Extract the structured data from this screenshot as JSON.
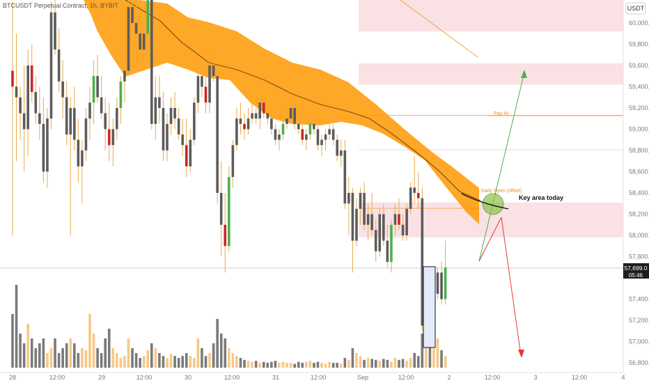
{
  "chart_data": {
    "type": "candlestick",
    "title": "BTCUSDT Perpetual Contract, 1h, BYBIT",
    "currency_label": "USDT",
    "price_axis": {
      "range": [
        56800,
        60300
      ],
      "ticks": [
        "60,000.0",
        "59,800.0",
        "59,600.0",
        "59,400.0",
        "59,200.0",
        "59,000.0",
        "58,800.0",
        "58,600.0",
        "58,400.0",
        "58,200.0",
        "58,000.0",
        "57,800.0",
        "57,400.0",
        "57,200.0",
        "57,000.0",
        "56,800.0"
      ]
    },
    "time_axis": {
      "ticks": [
        "28",
        "12:00",
        "29",
        "12:00",
        "30",
        "12:00",
        "31",
        "12:00",
        "Sep",
        "12:00",
        "2",
        "12:00",
        "3",
        "12:00",
        "4"
      ]
    },
    "current_price": {
      "value": 57699,
      "label": "57,699.0",
      "countdown": "05:46"
    },
    "candles": [
      {
        "o": 59550,
        "h": 60200,
        "l": 58000,
        "c": 59400
      },
      {
        "o": 59400,
        "h": 59900,
        "l": 58700,
        "c": 59300
      },
      {
        "o": 59300,
        "h": 59400,
        "l": 58900,
        "c": 59150
      },
      {
        "o": 59150,
        "h": 59600,
        "l": 58600,
        "c": 59000
      },
      {
        "o": 59000,
        "h": 59750,
        "l": 58750,
        "c": 59600
      },
      {
        "o": 59600,
        "h": 59800,
        "l": 59250,
        "c": 59350
      },
      {
        "o": 59350,
        "h": 59500,
        "l": 59050,
        "c": 59150
      },
      {
        "o": 59150,
        "h": 59400,
        "l": 58900,
        "c": 59050
      },
      {
        "o": 59050,
        "h": 59300,
        "l": 58500,
        "c": 58600
      },
      {
        "o": 58600,
        "h": 59200,
        "l": 58450,
        "c": 59100
      },
      {
        "o": 59100,
        "h": 60200,
        "l": 59000,
        "c": 60100
      },
      {
        "o": 60100,
        "h": 60250,
        "l": 59700,
        "c": 59750
      },
      {
        "o": 59750,
        "h": 59950,
        "l": 59350,
        "c": 59450
      },
      {
        "o": 59450,
        "h": 59650,
        "l": 59100,
        "c": 59300
      },
      {
        "o": 59300,
        "h": 59450,
        "l": 58850,
        "c": 58950
      },
      {
        "o": 58950,
        "h": 59300,
        "l": 58000,
        "c": 59200
      },
      {
        "o": 59200,
        "h": 59400,
        "l": 58800,
        "c": 58900
      },
      {
        "o": 58900,
        "h": 59100,
        "l": 58500,
        "c": 58650
      },
      {
        "o": 58650,
        "h": 58900,
        "l": 58300,
        "c": 58800
      },
      {
        "o": 58800,
        "h": 59200,
        "l": 58700,
        "c": 59100
      },
      {
        "o": 59100,
        "h": 59400,
        "l": 58900,
        "c": 59250
      },
      {
        "o": 59250,
        "h": 59650,
        "l": 59050,
        "c": 59500
      },
      {
        "o": 59500,
        "h": 59700,
        "l": 59250,
        "c": 59300
      },
      {
        "o": 59300,
        "h": 59500,
        "l": 59100,
        "c": 59150
      },
      {
        "o": 59150,
        "h": 59300,
        "l": 58800,
        "c": 59000
      },
      {
        "o": 59000,
        "h": 59250,
        "l": 58700,
        "c": 58850
      },
      {
        "o": 58850,
        "h": 59100,
        "l": 58650,
        "c": 59000
      },
      {
        "o": 59000,
        "h": 59300,
        "l": 58900,
        "c": 59200
      },
      {
        "o": 59200,
        "h": 59500,
        "l": 59050,
        "c": 59450
      },
      {
        "o": 59450,
        "h": 59650,
        "l": 59250,
        "c": 59550
      },
      {
        "o": 59550,
        "h": 60200,
        "l": 59500,
        "c": 60150
      },
      {
        "o": 60150,
        "h": 60300,
        "l": 59900,
        "c": 60000
      },
      {
        "o": 60000,
        "h": 60250,
        "l": 59800,
        "c": 59900
      },
      {
        "o": 59900,
        "h": 60100,
        "l": 59700,
        "c": 59750
      },
      {
        "o": 59750,
        "h": 60000,
        "l": 59600,
        "c": 59900
      },
      {
        "o": 59900,
        "h": 60300,
        "l": 59850,
        "c": 60250
      },
      {
        "o": 60250,
        "h": 60300,
        "l": 59000,
        "c": 59050
      },
      {
        "o": 59050,
        "h": 59500,
        "l": 58900,
        "c": 59300
      },
      {
        "o": 59300,
        "h": 59500,
        "l": 59050,
        "c": 59200
      },
      {
        "o": 59200,
        "h": 59350,
        "l": 58700,
        "c": 58800
      },
      {
        "o": 58800,
        "h": 59150,
        "l": 58700,
        "c": 59050
      },
      {
        "o": 59050,
        "h": 59300,
        "l": 58950,
        "c": 59200
      },
      {
        "o": 59200,
        "h": 59350,
        "l": 59000,
        "c": 59100
      },
      {
        "o": 59100,
        "h": 59200,
        "l": 58900,
        "c": 58950
      },
      {
        "o": 58950,
        "h": 59100,
        "l": 58750,
        "c": 58850
      },
      {
        "o": 58850,
        "h": 59100,
        "l": 58550,
        "c": 58650
      },
      {
        "o": 58650,
        "h": 59000,
        "l": 58600,
        "c": 58900
      },
      {
        "o": 58900,
        "h": 59300,
        "l": 58850,
        "c": 59250
      },
      {
        "o": 59250,
        "h": 59550,
        "l": 59150,
        "c": 59500
      },
      {
        "o": 59500,
        "h": 59600,
        "l": 59300,
        "c": 59400
      },
      {
        "o": 59400,
        "h": 59500,
        "l": 59150,
        "c": 59250
      },
      {
        "o": 59250,
        "h": 59650,
        "l": 59150,
        "c": 59600
      },
      {
        "o": 59600,
        "h": 59700,
        "l": 59450,
        "c": 59500
      },
      {
        "o": 59500,
        "h": 59600,
        "l": 58300,
        "c": 58400
      },
      {
        "o": 58400,
        "h": 58700,
        "l": 57800,
        "c": 58100
      },
      {
        "o": 58100,
        "h": 58400,
        "l": 57650,
        "c": 57900
      },
      {
        "o": 57900,
        "h": 58650,
        "l": 57850,
        "c": 58550
      },
      {
        "o": 58550,
        "h": 58900,
        "l": 58450,
        "c": 58850
      },
      {
        "o": 58850,
        "h": 59200,
        "l": 58800,
        "c": 59100
      },
      {
        "o": 59100,
        "h": 59250,
        "l": 58950,
        "c": 59050
      },
      {
        "o": 59050,
        "h": 59150,
        "l": 58900,
        "c": 59000
      },
      {
        "o": 59000,
        "h": 59200,
        "l": 58950,
        "c": 59100
      },
      {
        "o": 59100,
        "h": 59250,
        "l": 59050,
        "c": 59150
      },
      {
        "o": 59150,
        "h": 59200,
        "l": 59050,
        "c": 59100
      },
      {
        "o": 59100,
        "h": 59300,
        "l": 59000,
        "c": 59250
      },
      {
        "o": 59250,
        "h": 59300,
        "l": 59100,
        "c": 59150
      },
      {
        "o": 59150,
        "h": 59200,
        "l": 59050,
        "c": 59100
      },
      {
        "o": 59100,
        "h": 59150,
        "l": 58950,
        "c": 59000
      },
      {
        "o": 59000,
        "h": 59050,
        "l": 58850,
        "c": 58900
      },
      {
        "o": 58900,
        "h": 59000,
        "l": 58800,
        "c": 58950
      },
      {
        "o": 58950,
        "h": 59100,
        "l": 58900,
        "c": 59050
      },
      {
        "o": 59050,
        "h": 59200,
        "l": 59000,
        "c": 59100
      },
      {
        "o": 59100,
        "h": 59250,
        "l": 59050,
        "c": 59200
      },
      {
        "o": 59200,
        "h": 59250,
        "l": 59000,
        "c": 59050
      },
      {
        "o": 59050,
        "h": 59100,
        "l": 58950,
        "c": 59000
      },
      {
        "o": 59000,
        "h": 59050,
        "l": 58850,
        "c": 58900
      },
      {
        "o": 58900,
        "h": 59000,
        "l": 58800,
        "c": 58950
      },
      {
        "o": 58950,
        "h": 59100,
        "l": 58900,
        "c": 59050
      },
      {
        "o": 59050,
        "h": 59100,
        "l": 58950,
        "c": 59000
      },
      {
        "o": 59000,
        "h": 59050,
        "l": 58800,
        "c": 58850
      },
      {
        "o": 58850,
        "h": 58950,
        "l": 58750,
        "c": 58900
      },
      {
        "o": 58900,
        "h": 59000,
        "l": 58800,
        "c": 58950
      },
      {
        "o": 58950,
        "h": 59050,
        "l": 58900,
        "c": 59000
      },
      {
        "o": 59000,
        "h": 59050,
        "l": 58850,
        "c": 58900
      },
      {
        "o": 58900,
        "h": 58950,
        "l": 58700,
        "c": 58750
      },
      {
        "o": 58750,
        "h": 58900,
        "l": 58650,
        "c": 58800
      },
      {
        "o": 58800,
        "h": 58900,
        "l": 58250,
        "c": 58300
      },
      {
        "o": 58300,
        "h": 58550,
        "l": 58000,
        "c": 58400
      },
      {
        "o": 58400,
        "h": 58450,
        "l": 57650,
        "c": 57950
      },
      {
        "o": 57950,
        "h": 58350,
        "l": 57900,
        "c": 58250
      },
      {
        "o": 58250,
        "h": 58450,
        "l": 58100,
        "c": 58400
      },
      {
        "o": 58400,
        "h": 58500,
        "l": 58050,
        "c": 58100
      },
      {
        "o": 58100,
        "h": 58300,
        "l": 57950,
        "c": 58200
      },
      {
        "o": 58200,
        "h": 58400,
        "l": 58000,
        "c": 58050
      },
      {
        "o": 58050,
        "h": 58150,
        "l": 57750,
        "c": 57850
      },
      {
        "o": 57850,
        "h": 58250,
        "l": 57800,
        "c": 58200
      },
      {
        "o": 58200,
        "h": 58300,
        "l": 57900,
        "c": 57950
      },
      {
        "o": 57950,
        "h": 58100,
        "l": 57700,
        "c": 57750
      },
      {
        "o": 57750,
        "h": 58150,
        "l": 57650,
        "c": 58100
      },
      {
        "o": 58100,
        "h": 58300,
        "l": 58000,
        "c": 58200
      },
      {
        "o": 58200,
        "h": 58350,
        "l": 58050,
        "c": 58100
      },
      {
        "o": 58100,
        "h": 58200,
        "l": 57950,
        "c": 58000
      },
      {
        "o": 58000,
        "h": 58300,
        "l": 57950,
        "c": 58250
      },
      {
        "o": 58250,
        "h": 58500,
        "l": 58200,
        "c": 58450
      },
      {
        "o": 58450,
        "h": 58750,
        "l": 58300,
        "c": 58400
      },
      {
        "o": 58400,
        "h": 58600,
        "l": 58250,
        "c": 58350
      },
      {
        "o": 58350,
        "h": 58450,
        "l": 57100,
        "c": 57150
      },
      {
        "o": 57150,
        "h": 57450,
        "l": 57100,
        "c": 57400
      },
      {
        "o": 57400,
        "h": 57450,
        "l": 57050,
        "c": 57200
      },
      {
        "o": 57200,
        "h": 57500,
        "l": 57150,
        "c": 57450
      },
      {
        "o": 57450,
        "h": 57700,
        "l": 57400,
        "c": 57650
      },
      {
        "o": 57650,
        "h": 57750,
        "l": 57350,
        "c": 57400
      },
      {
        "o": 57400,
        "h": 57950,
        "l": 57350,
        "c": 57699
      }
    ],
    "volume": [
      0.55,
      0.85,
      0.35,
      0.25,
      0.45,
      0.3,
      0.2,
      0.25,
      0.3,
      0.15,
      0.2,
      0.3,
      0.15,
      0.2,
      0.25,
      0.3,
      0.25,
      0.15,
      0.2,
      0.18,
      0.55,
      0.35,
      0.2,
      0.15,
      0.3,
      0.4,
      0.2,
      0.15,
      0.1,
      0.12,
      0.3,
      0.2,
      0.15,
      0.1,
      0.12,
      0.18,
      0.25,
      0.2,
      0.15,
      0.12,
      0.1,
      0.14,
      0.12,
      0.1,
      0.12,
      0.15,
      0.12,
      0.1,
      0.3,
      0.2,
      0.12,
      0.15,
      0.25,
      0.5,
      0.35,
      0.3,
      0.2,
      0.15,
      0.12,
      0.1,
      0.08,
      0.07,
      0.06,
      0.07,
      0.05,
      0.06,
      0.05,
      0.06,
      0.07,
      0.05,
      0.06,
      0.05,
      0.05,
      0.04,
      0.06,
      0.05,
      0.06,
      0.07,
      0.05,
      0.06,
      0.05,
      0.04,
      0.06,
      0.05,
      0.05,
      0.04,
      0.1,
      0.08,
      0.2,
      0.15,
      0.12,
      0.08,
      0.1,
      0.09,
      0.08,
      0.07,
      0.09,
      0.08,
      0.06,
      0.1,
      0.08,
      0.09,
      0.07,
      0.1,
      0.15,
      0.12,
      0.35,
      0.3,
      0.25,
      0.2,
      0.3,
      0.18,
      0.12
    ]
  },
  "annotations": {
    "pdh_label": "Pay-Hi",
    "daily_open_label": "Daily Open (offset)",
    "key_area_label": "Key area today",
    "pdh_price": 59130,
    "daily_open_price": 58255,
    "resistance_zones": [
      [
        59920,
        60300
      ],
      [
        59420,
        59620
      ],
      [
        58800,
        58810
      ],
      [
        57980,
        58310
      ]
    ],
    "colors": {
      "bull": "#4caf50",
      "bear": "#c62828",
      "neutral": "#5c5c5c",
      "cloud": "#ff9800",
      "zone": "#f8d7da",
      "volume": "#f5c27a",
      "volume_dark": "#6b6b6b",
      "arrow_up": "#4caf50",
      "arrow_down": "#e53935",
      "circle": "#8bc34a"
    }
  }
}
